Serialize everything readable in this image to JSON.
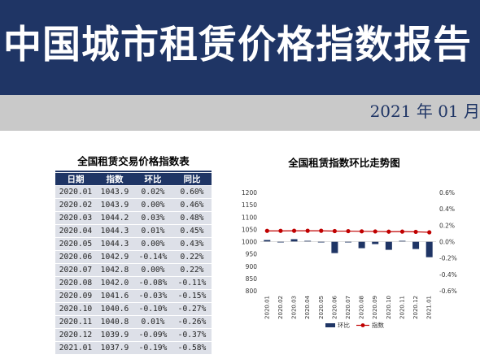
{
  "header": {
    "title": "中国城市租赁价格指数报告",
    "date": "2021 年 01 月"
  },
  "table": {
    "title": "全国租赁交易价格指数表",
    "headers": [
      "日期",
      "指数",
      "环比",
      "同比"
    ],
    "rows": [
      [
        "2020.01",
        "1043.9",
        "0.02%",
        "0.60%"
      ],
      [
        "2020.02",
        "1043.9",
        "0.00%",
        "0.46%"
      ],
      [
        "2020.03",
        "1044.2",
        "0.03%",
        "0.48%"
      ],
      [
        "2020.04",
        "1044.3",
        "0.01%",
        "0.45%"
      ],
      [
        "2020.05",
        "1044.3",
        "0.00%",
        "0.43%"
      ],
      [
        "2020.06",
        "1042.9",
        "-0.14%",
        "0.22%"
      ],
      [
        "2020.07",
        "1042.8",
        "0.00%",
        "0.22%"
      ],
      [
        "2020.08",
        "1042.0",
        "-0.08%",
        "-0.11%"
      ],
      [
        "2020.09",
        "1041.6",
        "-0.03%",
        "-0.15%"
      ],
      [
        "2020.10",
        "1040.6",
        "-0.10%",
        "-0.27%"
      ],
      [
        "2020.11",
        "1040.8",
        "0.01%",
        "-0.26%"
      ],
      [
        "2020.12",
        "1039.9",
        "-0.09%",
        "-0.37%"
      ],
      [
        "2021.01",
        "1037.9",
        "-0.19%",
        "-0.58%"
      ]
    ]
  },
  "chart_title": "全国租赁指数环比走势图",
  "chart_data": {
    "type": "bar+line",
    "categories": [
      "2020.01",
      "2020.02",
      "2020.03",
      "2020.04",
      "2020.05",
      "2020.06",
      "2020.07",
      "2020.08",
      "2020.09",
      "2020.10",
      "2020.11",
      "2020.12",
      "2021.01"
    ],
    "series": [
      {
        "name": "环比",
        "type": "bar",
        "axis": "right",
        "color": "#1f3565",
        "values": [
          0.02,
          0.0,
          0.03,
          0.01,
          0.0,
          -0.14,
          0.0,
          -0.08,
          -0.03,
          -0.1,
          0.01,
          -0.09,
          -0.19
        ]
      },
      {
        "name": "指数",
        "type": "line",
        "axis": "left",
        "color": "#c00000",
        "values": [
          1043.9,
          1043.9,
          1044.2,
          1044.3,
          1044.3,
          1042.9,
          1042.8,
          1042.0,
          1041.6,
          1040.6,
          1040.8,
          1039.9,
          1037.9
        ]
      }
    ],
    "y_left": {
      "ylim": [
        800,
        1200
      ],
      "ticks": [
        "1200",
        "1150",
        "1100",
        "1050",
        "1000",
        "950",
        "900",
        "850",
        "800"
      ]
    },
    "y_right": {
      "ylim": [
        -0.6,
        0.6
      ],
      "ticks": [
        "0.6%",
        "0.4%",
        "0.2%",
        "0.0%",
        "-0.2%",
        "-0.4%",
        "-0.6%"
      ]
    },
    "legend": "bottom",
    "grid": false
  }
}
